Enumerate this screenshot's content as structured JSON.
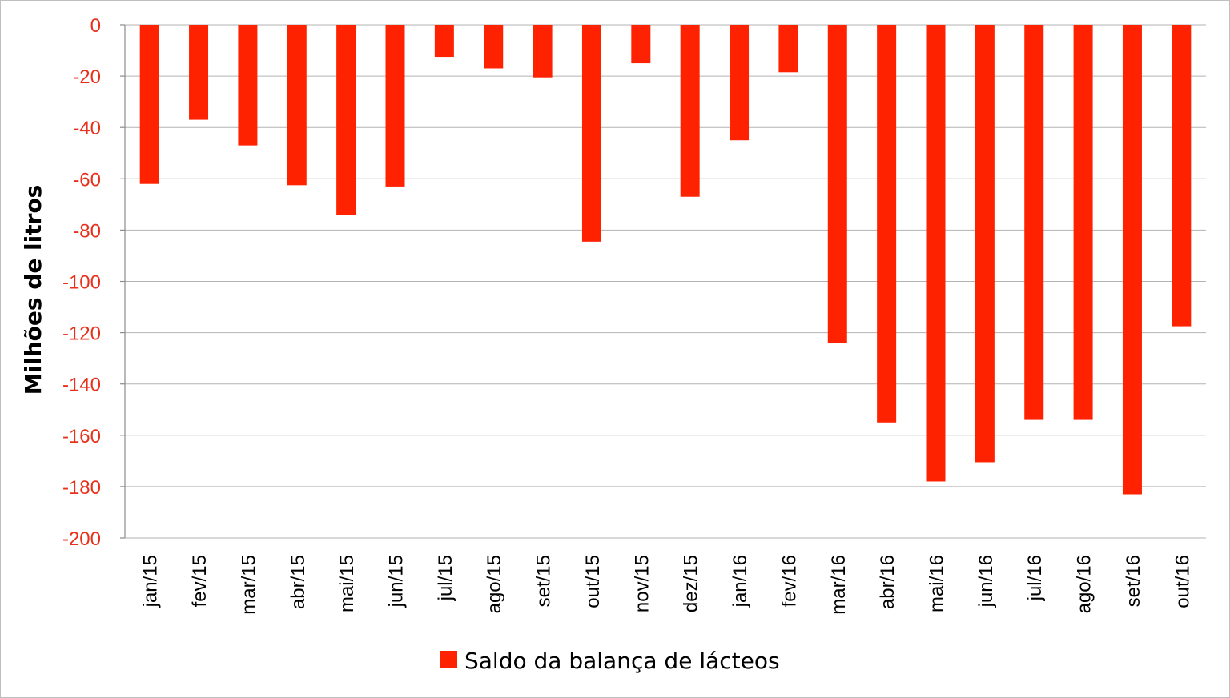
{
  "chart_data": {
    "type": "bar",
    "ylabel": "Milhões de litros",
    "ylim": [
      -200,
      0
    ],
    "yticks": [
      0,
      -20,
      -40,
      -60,
      -80,
      -100,
      -120,
      -140,
      -160,
      -180,
      -200
    ],
    "grid": true,
    "legend_position": "bottom",
    "categories": [
      "jan/15",
      "fev/15",
      "mar/15",
      "abr/15",
      "mai/15",
      "jun/15",
      "jul/15",
      "ago/15",
      "set/15",
      "out/15",
      "nov/15",
      "dez/15",
      "jan/16",
      "fev/16",
      "mar/16",
      "abr/16",
      "mai/16",
      "jun/16",
      "jul/16",
      "ago/16",
      "set/16",
      "out/16"
    ],
    "series": [
      {
        "name": "Saldo da balança de lácteos",
        "color": "#ff2200",
        "values": [
          -62,
          -37,
          -47,
          -62.5,
          -74,
          -63,
          -12.5,
          -17,
          -20.5,
          -84.5,
          -15,
          -67,
          -45,
          -18.5,
          -124,
          -155,
          -178,
          -170.5,
          -154,
          -154,
          -183,
          -117.5
        ]
      }
    ],
    "tick_label_color": "#e8311b"
  }
}
